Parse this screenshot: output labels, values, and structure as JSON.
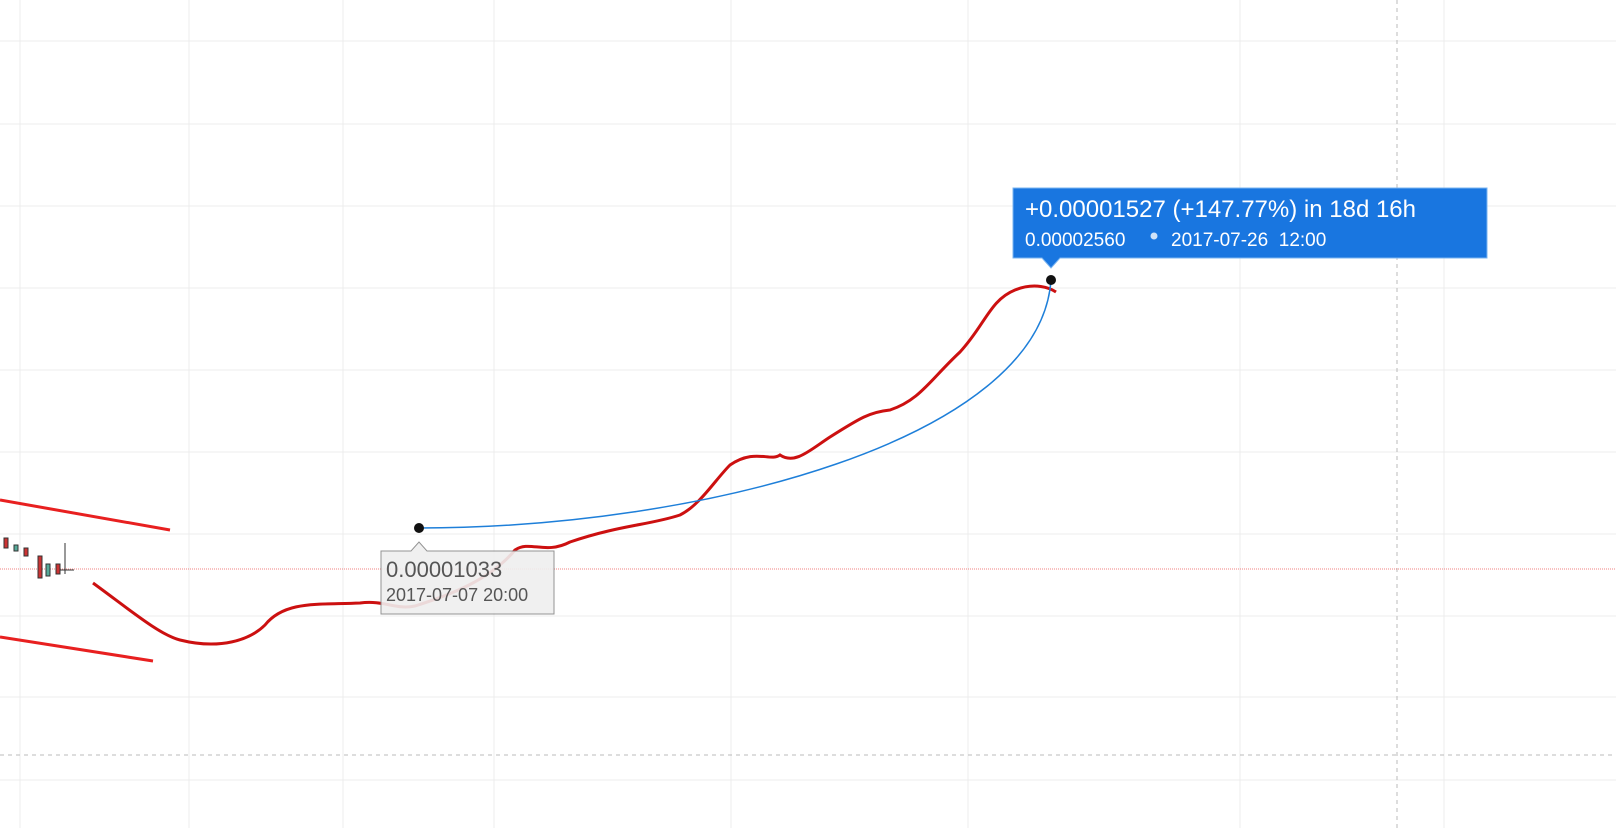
{
  "start_point": {
    "price": "0.00001033",
    "date": "2017-07-07 20:00"
  },
  "measure": {
    "change": "+0.00001527 (+147.77%) in 18d 16h",
    "price": "0.00002560",
    "date": "2017-07-26  12:00"
  }
}
